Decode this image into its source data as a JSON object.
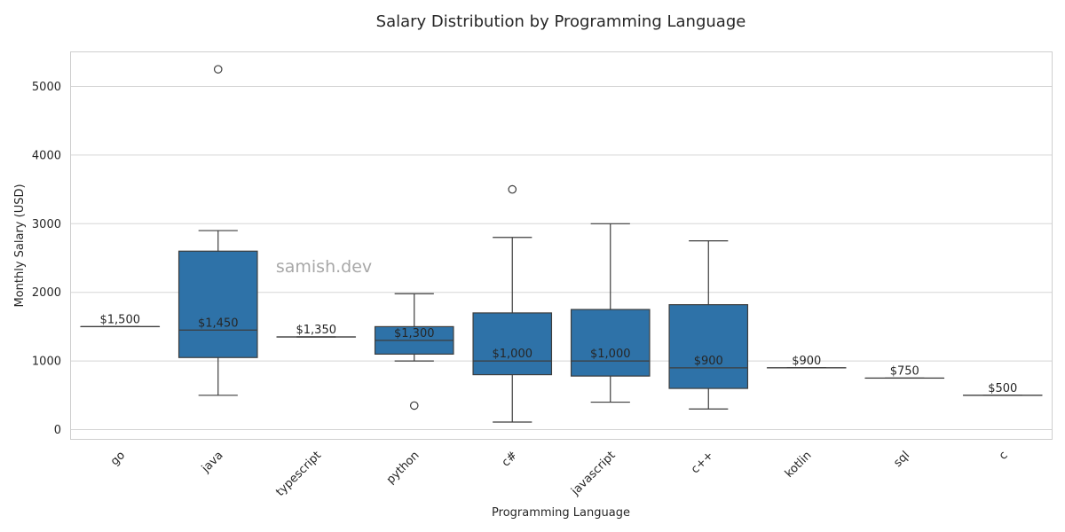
{
  "chart_data": {
    "type": "box",
    "title": "Salary Distribution by Programming Language",
    "xlabel": "Programming Language",
    "ylabel": "Monthly Salary (USD)",
    "ylim": [
      -150,
      5520
    ],
    "yticks": [
      0,
      1000,
      2000,
      3000,
      4000,
      5000
    ],
    "ytick_labels": [
      "0",
      "1000",
      "2000",
      "3000",
      "4000",
      "5000"
    ],
    "grid": true,
    "box_color": "#2e72a8",
    "watermark": "samish.dev",
    "categories": [
      "go",
      "java",
      "typescript",
      "python",
      "c#",
      "javascript",
      "c++",
      "kotlin",
      "sql",
      "c"
    ],
    "boxes": [
      {
        "category": "go",
        "whisker_low": 1500,
        "q1": 1500,
        "median": 1500,
        "q3": 1500,
        "whisker_high": 1500,
        "outliers": [],
        "label": "$1,500"
      },
      {
        "category": "java",
        "whisker_low": 500,
        "q1": 1050,
        "median": 1450,
        "q3": 2600,
        "whisker_high": 2900,
        "outliers": [
          5250
        ],
        "label": "$1,450"
      },
      {
        "category": "typescript",
        "whisker_low": 1350,
        "q1": 1350,
        "median": 1350,
        "q3": 1350,
        "whisker_high": 1350,
        "outliers": [],
        "label": "$1,350"
      },
      {
        "category": "python",
        "whisker_low": 1000,
        "q1": 1100,
        "median": 1300,
        "q3": 1500,
        "whisker_high": 1980,
        "outliers": [
          350
        ],
        "label": "$1,300"
      },
      {
        "category": "c#",
        "whisker_low": 110,
        "q1": 800,
        "median": 1000,
        "q3": 1700,
        "whisker_high": 2800,
        "outliers": [
          3500
        ],
        "label": "$1,000"
      },
      {
        "category": "javascript",
        "whisker_low": 400,
        "q1": 780,
        "median": 1000,
        "q3": 1750,
        "whisker_high": 3000,
        "outliers": [],
        "label": "$1,000"
      },
      {
        "category": "c++",
        "whisker_low": 300,
        "q1": 600,
        "median": 900,
        "q3": 1820,
        "whisker_high": 2750,
        "outliers": [],
        "label": "$900"
      },
      {
        "category": "kotlin",
        "whisker_low": 900,
        "q1": 900,
        "median": 900,
        "q3": 900,
        "whisker_high": 900,
        "outliers": [],
        "label": "$900"
      },
      {
        "category": "sql",
        "whisker_low": 750,
        "q1": 750,
        "median": 750,
        "q3": 750,
        "whisker_high": 750,
        "outliers": [],
        "label": "$750"
      },
      {
        "category": "c",
        "whisker_low": 500,
        "q1": 500,
        "median": 500,
        "q3": 500,
        "whisker_high": 500,
        "outliers": [],
        "label": "$500"
      }
    ]
  }
}
